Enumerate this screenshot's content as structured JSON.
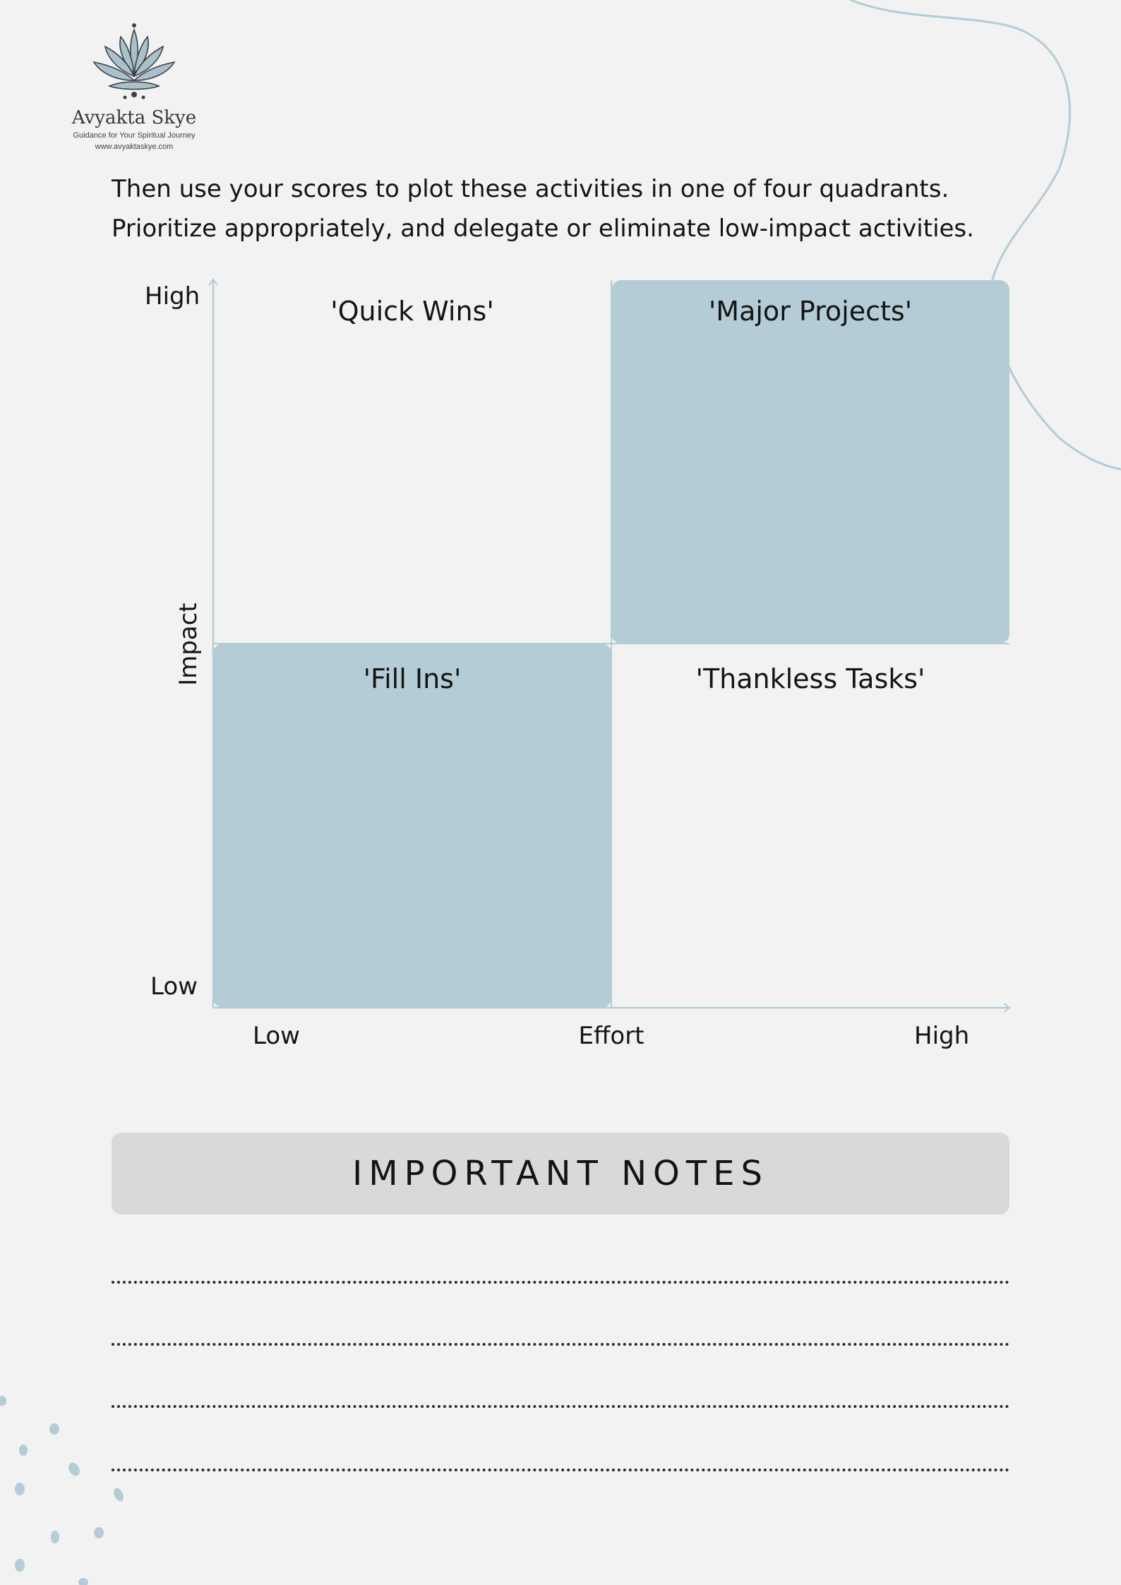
{
  "colors": {
    "background": "#f2f2f2",
    "quadrant_fill": "#b4ccd6",
    "axis": "#b4ccd6",
    "accent_curve": "#b4ccd6",
    "notes_banner": "#d9d9d9",
    "text": "#141414"
  },
  "logo": {
    "icon": "lotus-mandala-icon",
    "name": "Avyakta Skye",
    "tagline": "Guidance for Your Spiritual Journey",
    "url": "www.avyaktaskye.com"
  },
  "intro": {
    "line1": "Then use your scores to plot these activities in one of four quadrants.",
    "line2": "Prioritize appropriately, and delegate or eliminate low-impact activities."
  },
  "matrix": {
    "y_axis": {
      "title": "Impact",
      "high": "High",
      "low": "Low"
    },
    "x_axis": {
      "title": "Effort",
      "low": "Low",
      "high": "High"
    },
    "quadrants": {
      "top_left": {
        "title": "'Quick Wins'",
        "filled": false
      },
      "top_right": {
        "title": "'Major Projects'",
        "filled": true
      },
      "bottom_left": {
        "title": "'Fill Ins'",
        "filled": true
      },
      "bottom_right": {
        "title": "'Thankless Tasks'",
        "filled": false
      }
    }
  },
  "notes": {
    "title": "IMPORTANT NOTES",
    "line_count": 4
  }
}
